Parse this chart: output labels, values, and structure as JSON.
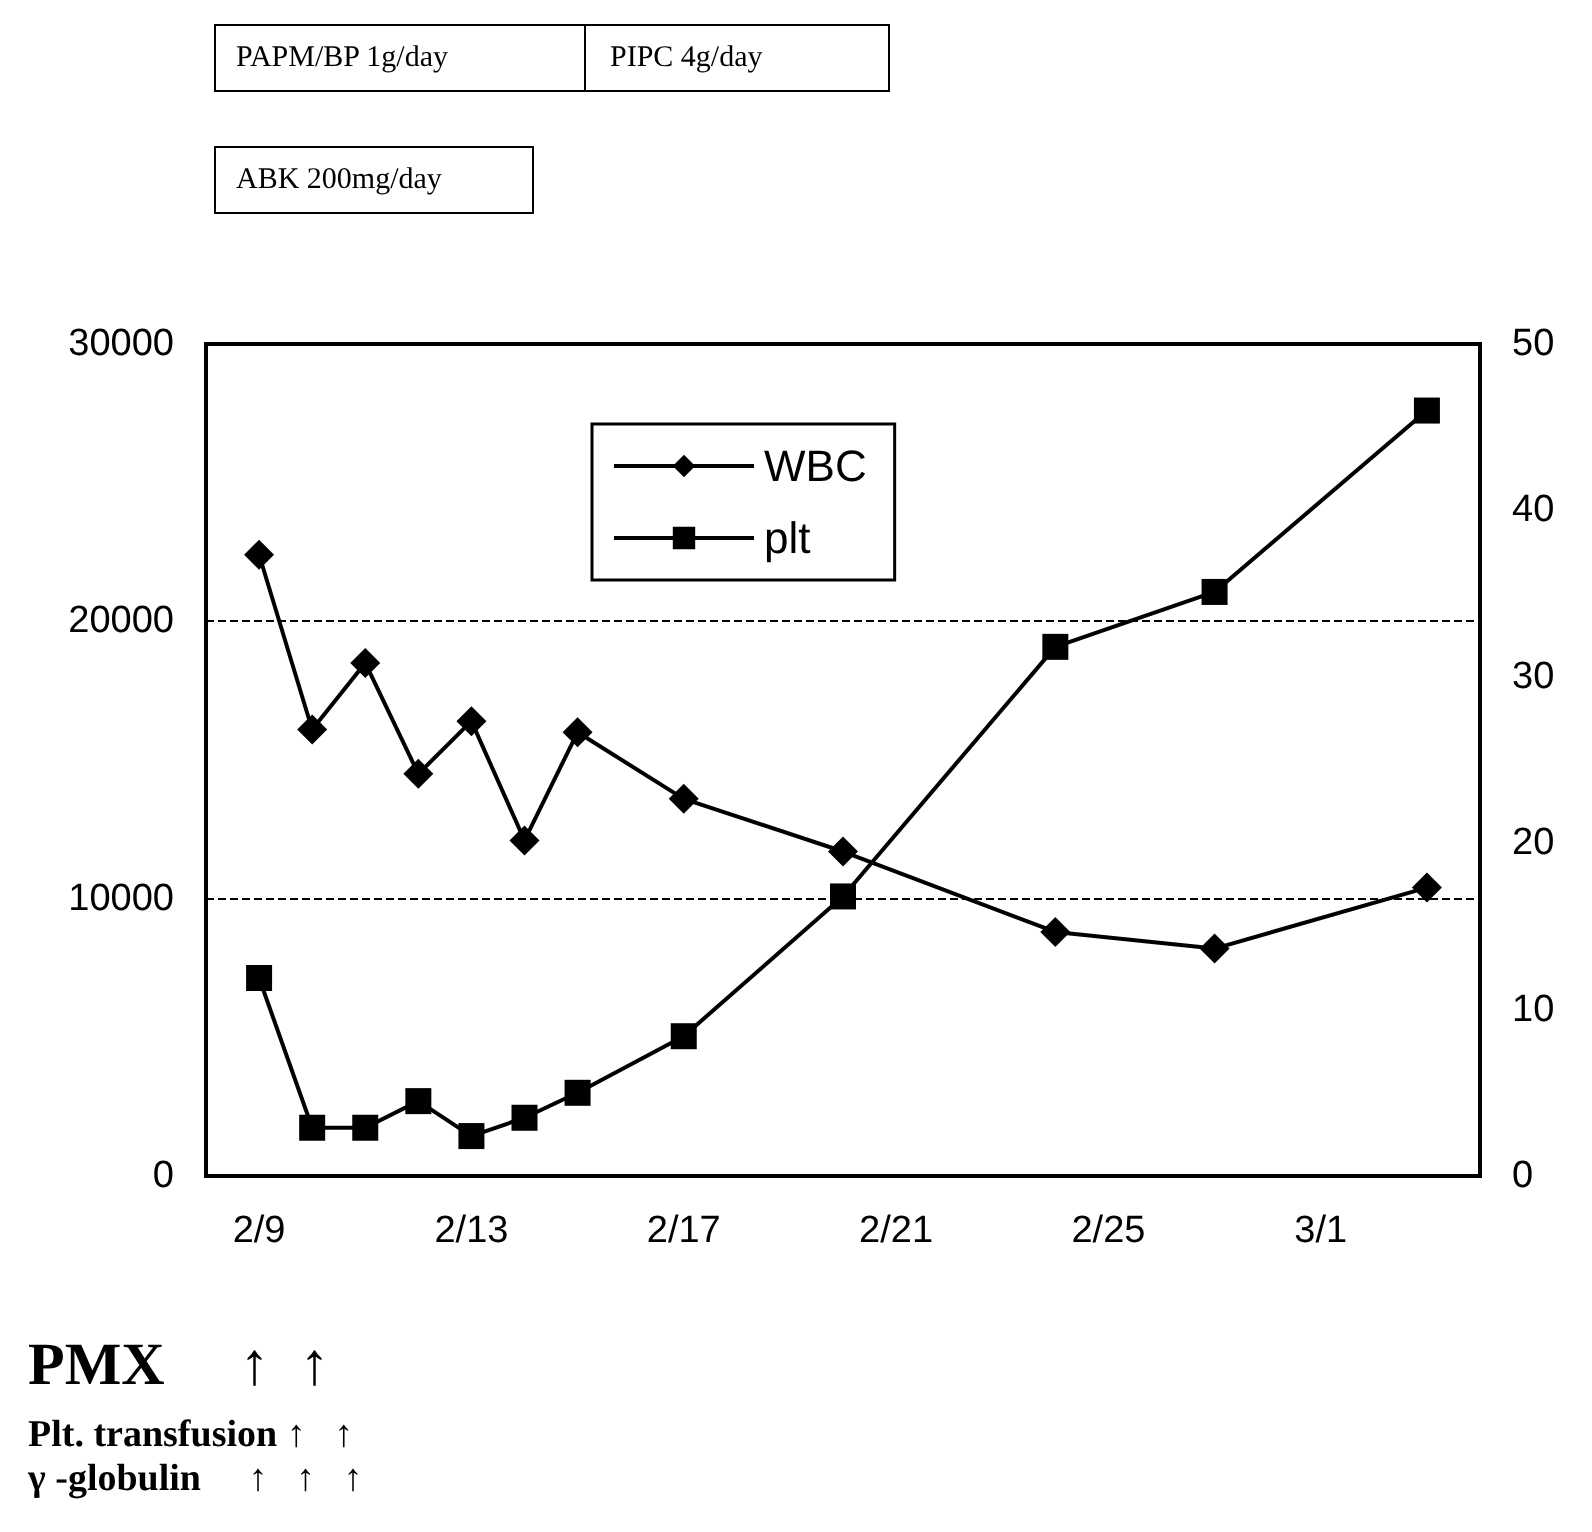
{
  "chart_data": {
    "type": "line",
    "x": [
      "--02-09",
      "--02-10",
      "--02-11",
      "--02-12",
      "--02-13",
      "--02-14",
      "--02-15",
      "--02-17",
      "--02-20",
      "--02-24",
      "--02-27",
      "--03-03"
    ],
    "series": [
      {
        "name": "WBC",
        "color": "#000000",
        "marker": "diamond",
        "values": [
          22400,
          16100,
          18500,
          14500,
          16400,
          12100,
          16000,
          13600,
          11700,
          8800,
          8200,
          10400
        ]
      },
      {
        "name": "plt",
        "color": "#000000",
        "marker": "square",
        "axis": "y2",
        "values": [
          11.9,
          2.9,
          2.9,
          4.5,
          2.4,
          3.5,
          5.0,
          8.4,
          16.8,
          31.8,
          35.1,
          46.0
        ]
      }
    ],
    "xlim": [
      "--02-08",
      "--03-04"
    ],
    "xticks": [
      {
        "value": "--02-09",
        "label": "2/9"
      },
      {
        "value": "--02-13",
        "label": "2/13"
      },
      {
        "value": "--02-17",
        "label": "2/17"
      },
      {
        "value": "--02-21",
        "label": "2/21"
      },
      {
        "value": "--02-25",
        "label": "2/25"
      },
      {
        "value": "--03-01",
        "label": "3/1"
      }
    ],
    "ylim": [
      0,
      30000
    ],
    "yticks": [
      0,
      10000,
      20000,
      30000
    ],
    "y2lim": [
      0,
      50
    ],
    "y2ticks": [
      0,
      10,
      20,
      30,
      40,
      50
    ],
    "grid": "y",
    "line_style": "solid",
    "legend": "top",
    "annotations": [
      "PAPM/BP 1g/day",
      "PIPC 4g/day",
      "ABK 200mg/day",
      "PMX     ↑  ↑",
      "Plt. transfusion ↑   ↑",
      "γ -globulin     ↑   ↑   ↑"
    ]
  }
}
